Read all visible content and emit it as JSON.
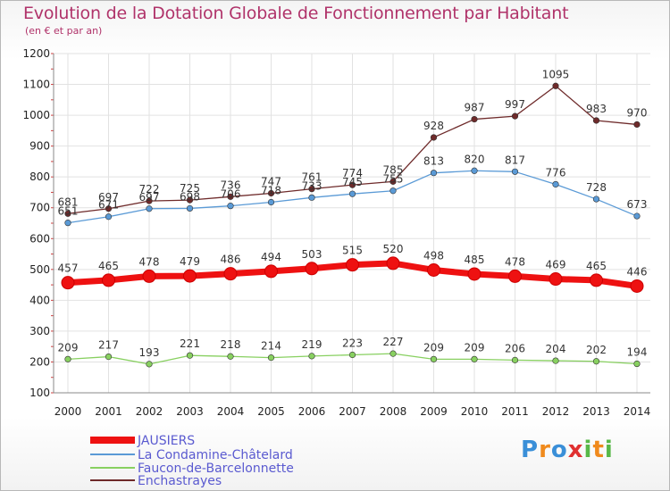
{
  "chart_data": {
    "type": "line",
    "title": "Evolution de la Dotation Globale de Fonctionnement par Habitant",
    "subtitle": "(en € et par an)",
    "xlabel": "",
    "ylabel": "",
    "x": [
      "2000",
      "2001",
      "2002",
      "2003",
      "2004",
      "2005",
      "2006",
      "2007",
      "2008",
      "2009",
      "2010",
      "2011",
      "2012",
      "2013",
      "2014"
    ],
    "ylim": [
      100,
      1200
    ],
    "yticks": [
      "100",
      "200",
      "300",
      "400",
      "500",
      "600",
      "700",
      "800",
      "900",
      "1000",
      "1100",
      "1200"
    ],
    "grid": true,
    "legend_position": "bottom-left",
    "series": [
      {
        "name": "JAUSIERS",
        "color": "#ee1111",
        "values": [
          457,
          465,
          478,
          479,
          486,
          494,
          503,
          515,
          520,
          498,
          485,
          478,
          469,
          465,
          446
        ],
        "labels": [
          "457",
          "465",
          "478",
          "479",
          "486",
          "494",
          "503",
          "515",
          "520",
          "498",
          "485",
          "478",
          "469",
          "465",
          "446"
        ]
      },
      {
        "name": "La Condamine-Châtelard",
        "color": "#5a9ad6",
        "values": [
          651,
          671,
          697,
          698,
          706,
          718,
          733,
          745,
          755,
          813,
          820,
          817,
          776,
          728,
          673
        ],
        "labels": [
          "651",
          "671",
          "697",
          "698",
          "706",
          "718",
          "733",
          "745",
          "755",
          "813",
          "820",
          "817",
          "776",
          "728",
          "673"
        ]
      },
      {
        "name": "Faucon-de-Barcelonnette",
        "color": "#88d060",
        "values": [
          209,
          217,
          193,
          221,
          218,
          214,
          219,
          223,
          227,
          209,
          209,
          206,
          204,
          202,
          194
        ],
        "labels": [
          "209",
          "217",
          "193",
          "221",
          "218",
          "214",
          "219",
          "223",
          "227",
          "209",
          "209",
          "206",
          "204",
          "202",
          "194"
        ]
      },
      {
        "name": "Enchastrayes",
        "color": "#6e2a2a",
        "values": [
          681,
          697,
          722,
          725,
          736,
          747,
          761,
          774,
          785,
          928,
          987,
          997,
          1095,
          983,
          970
        ],
        "labels": [
          "681",
          "697",
          "722",
          "725",
          "736",
          "747",
          "761",
          "774",
          "785",
          "928",
          "987",
          "997",
          "1095",
          "983",
          "970"
        ]
      }
    ]
  },
  "logo": {
    "text": "Proxiti",
    "letters": [
      "P",
      "r",
      "o",
      "x",
      "i",
      "t",
      "i"
    ],
    "colors": [
      "#3a8fd8",
      "#f08a1c",
      "#3a8fd8",
      "#e03030",
      "#58b848",
      "#f08a1c",
      "#58b848"
    ]
  }
}
